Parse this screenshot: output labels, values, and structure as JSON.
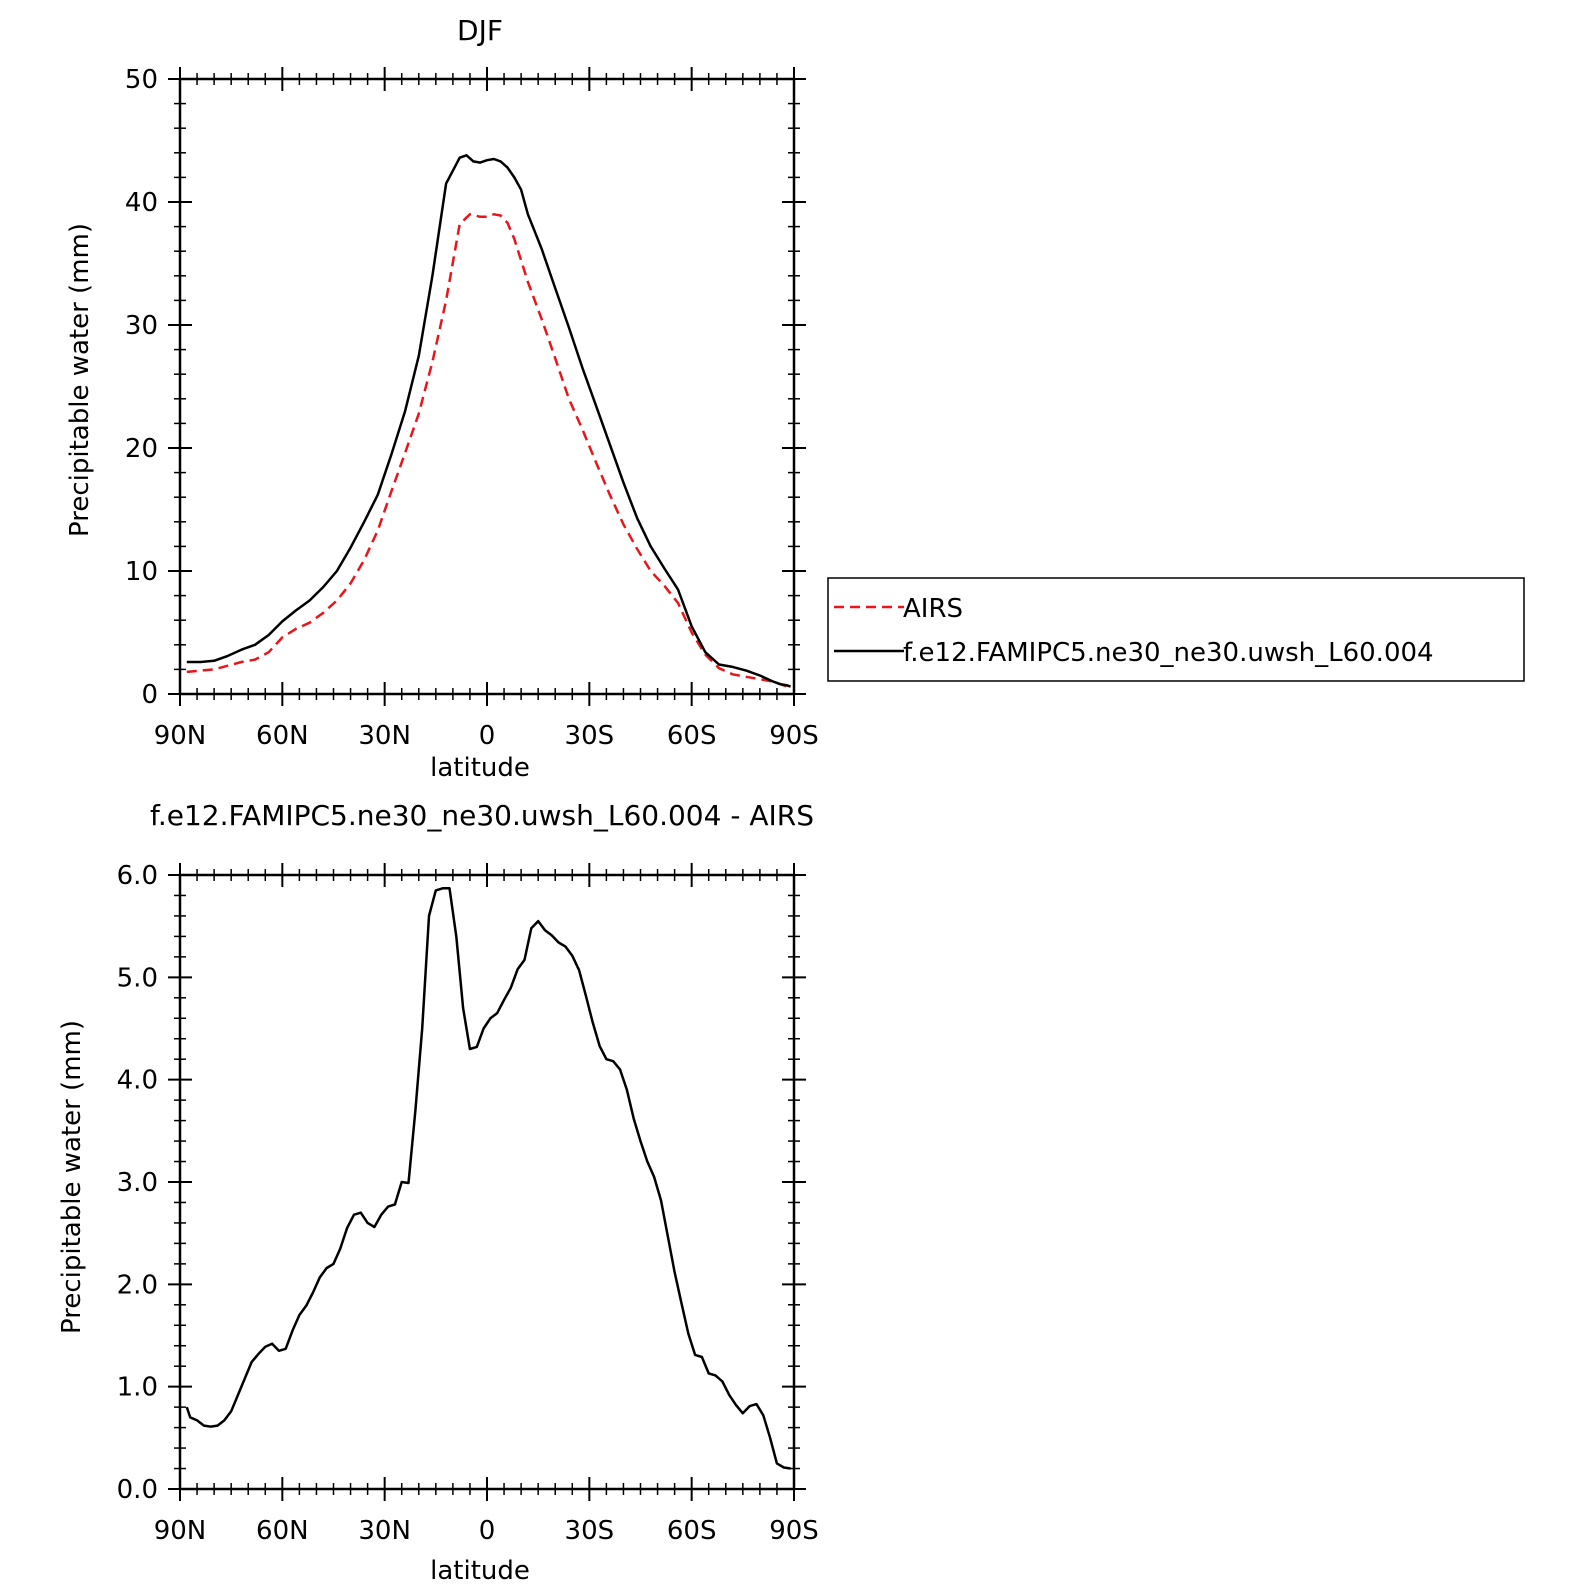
{
  "chart_data": [
    {
      "type": "line",
      "title": "DJF",
      "xlabel": "latitude",
      "ylabel": "Precipitable water (mm)",
      "xlim": [
        90,
        -90
      ],
      "ylim": [
        0,
        50
      ],
      "xticks": [
        {
          "value": 90,
          "label": "90N"
        },
        {
          "value": 60,
          "label": "60N"
        },
        {
          "value": 30,
          "label": "30N"
        },
        {
          "value": 0,
          "label": "0"
        },
        {
          "value": -30,
          "label": "30S"
        },
        {
          "value": -60,
          "label": "60S"
        },
        {
          "value": -90,
          "label": "90S"
        }
      ],
      "yticks": [
        {
          "value": 0,
          "label": "0"
        },
        {
          "value": 10,
          "label": "10"
        },
        {
          "value": 20,
          "label": "20"
        },
        {
          "value": 30,
          "label": "30"
        },
        {
          "value": 40,
          "label": "40"
        },
        {
          "value": 50,
          "label": "50"
        }
      ],
      "grid": false,
      "legend_position": "right",
      "series": [
        {
          "name": "AIRS",
          "color": "#e8151b",
          "dash": "dashed",
          "x": [
            88,
            84,
            80,
            76,
            72,
            68,
            64,
            60,
            56,
            52,
            48,
            44,
            40,
            36,
            32,
            28,
            24,
            20,
            16,
            12,
            8,
            5,
            2,
            0,
            -2,
            -4,
            -6,
            -8,
            -12,
            -16,
            -20,
            -24,
            -28,
            -32,
            -36,
            -40,
            -44,
            -48,
            -52,
            -56,
            -60,
            -64,
            -68,
            -72,
            -76,
            -80,
            -84,
            -86,
            -88,
            -89
          ],
          "y": [
            1.8,
            1.9,
            2.0,
            2.3,
            2.6,
            2.8,
            3.4,
            4.6,
            5.3,
            5.8,
            6.6,
            7.6,
            9.0,
            10.9,
            13.3,
            16.5,
            19.6,
            22.8,
            27.0,
            32.0,
            38.2,
            39.0,
            38.8,
            38.8,
            39.0,
            38.9,
            38.3,
            37.0,
            33.5,
            30.5,
            27.3,
            24.0,
            21.5,
            18.8,
            16.2,
            13.8,
            11.8,
            10.0,
            8.8,
            7.4,
            5.0,
            3.2,
            2.1,
            1.6,
            1.4,
            1.2,
            1.0,
            0.8,
            0.6,
            0.5
          ]
        },
        {
          "name": "f.e12.FAMIPC5.ne30_ne30.uwsh_L60.004",
          "color": "#000000",
          "dash": "solid",
          "x": [
            88,
            84,
            80,
            76,
            72,
            68,
            64,
            60,
            56,
            52,
            48,
            44,
            40,
            36,
            32,
            28,
            24,
            20,
            16,
            12,
            8,
            6,
            4,
            2,
            0,
            -2,
            -4,
            -6,
            -8,
            -10,
            -12,
            -16,
            -20,
            -24,
            -28,
            -32,
            -36,
            -40,
            -44,
            -48,
            -52,
            -56,
            -60,
            -64,
            -68,
            -72,
            -76,
            -80,
            -84,
            -86,
            -88,
            -89
          ],
          "y": [
            2.6,
            2.6,
            2.7,
            3.1,
            3.6,
            4.0,
            4.8,
            5.9,
            6.8,
            7.6,
            8.7,
            10.0,
            11.9,
            14.0,
            16.2,
            19.5,
            23.0,
            27.5,
            34.0,
            41.5,
            43.6,
            43.8,
            43.3,
            43.2,
            43.4,
            43.5,
            43.3,
            42.8,
            42.0,
            41.0,
            39.0,
            36.2,
            33.0,
            29.8,
            26.5,
            23.4,
            20.3,
            17.2,
            14.3,
            12.0,
            10.2,
            8.5,
            5.5,
            3.4,
            2.4,
            2.2,
            1.9,
            1.5,
            1.0,
            0.8,
            0.7,
            0.6
          ]
        }
      ]
    },
    {
      "type": "line",
      "title": "f.e12.FAMIPC5.ne30_ne30.uwsh_L60.004 - AIRS",
      "xlabel": "latitude",
      "ylabel": "Precipitable water (mm)",
      "xlim": [
        90,
        -90
      ],
      "ylim": [
        0,
        6
      ],
      "xticks": [
        {
          "value": 90,
          "label": "90N"
        },
        {
          "value": 60,
          "label": "60N"
        },
        {
          "value": 30,
          "label": "30N"
        },
        {
          "value": 0,
          "label": "0"
        },
        {
          "value": -30,
          "label": "30S"
        },
        {
          "value": -60,
          "label": "60S"
        },
        {
          "value": -90,
          "label": "90S"
        }
      ],
      "yticks": [
        {
          "value": 0,
          "label": "0.0"
        },
        {
          "value": 1,
          "label": "1.0"
        },
        {
          "value": 2,
          "label": "2.0"
        },
        {
          "value": 3,
          "label": "3.0"
        },
        {
          "value": 4,
          "label": "4.0"
        },
        {
          "value": 5,
          "label": "5.0"
        },
        {
          "value": 6,
          "label": "6.0"
        }
      ],
      "grid": false,
      "series": [
        {
          "color": "#000000",
          "dash": "solid",
          "x": [
            88,
            87,
            85,
            83,
            81,
            79,
            77,
            75,
            73,
            71,
            69,
            67,
            65,
            63,
            61,
            59,
            57,
            55,
            53,
            51,
            49,
            47,
            45,
            43,
            41,
            39,
            37,
            35,
            33,
            31,
            29,
            27,
            25,
            23,
            21,
            19,
            17,
            15,
            13,
            11,
            9,
            7,
            5,
            3,
            1,
            -1,
            -3,
            -5,
            -7,
            -9,
            -11,
            -13,
            -15,
            -17,
            -19,
            -21,
            -23,
            -25,
            -27,
            -29,
            -31,
            -33,
            -35,
            -37,
            -39,
            -41,
            -43,
            -45,
            -47,
            -49,
            -51,
            -53,
            -55,
            -57,
            -59,
            -61,
            -63,
            -65,
            -67,
            -69,
            -71,
            -73,
            -75,
            -77,
            -79,
            -81,
            -83,
            -85,
            -87,
            -89
          ],
          "y": [
            0.8,
            0.7,
            0.67,
            0.62,
            0.61,
            0.62,
            0.67,
            0.76,
            0.92,
            1.08,
            1.24,
            1.32,
            1.39,
            1.42,
            1.35,
            1.37,
            1.55,
            1.7,
            1.79,
            1.92,
            2.07,
            2.16,
            2.2,
            2.35,
            2.55,
            2.68,
            2.7,
            2.6,
            2.56,
            2.68,
            2.76,
            2.78,
            3.0,
            2.99,
            3.7,
            4.5,
            5.6,
            5.85,
            5.87,
            5.87,
            5.4,
            4.7,
            4.3,
            4.32,
            4.5,
            4.6,
            4.65,
            4.78,
            4.9,
            5.08,
            5.17,
            5.48,
            5.55,
            5.46,
            5.41,
            5.34,
            5.3,
            5.21,
            5.07,
            4.82,
            4.56,
            4.33,
            4.2,
            4.18,
            4.1,
            3.9,
            3.62,
            3.4,
            3.2,
            3.05,
            2.82,
            2.47,
            2.12,
            1.82,
            1.52,
            1.31,
            1.29,
            1.13,
            1.11,
            1.05,
            0.92,
            0.82,
            0.74,
            0.81,
            0.83,
            0.72,
            0.5,
            0.25,
            0.21,
            0.2
          ]
        }
      ]
    }
  ]
}
